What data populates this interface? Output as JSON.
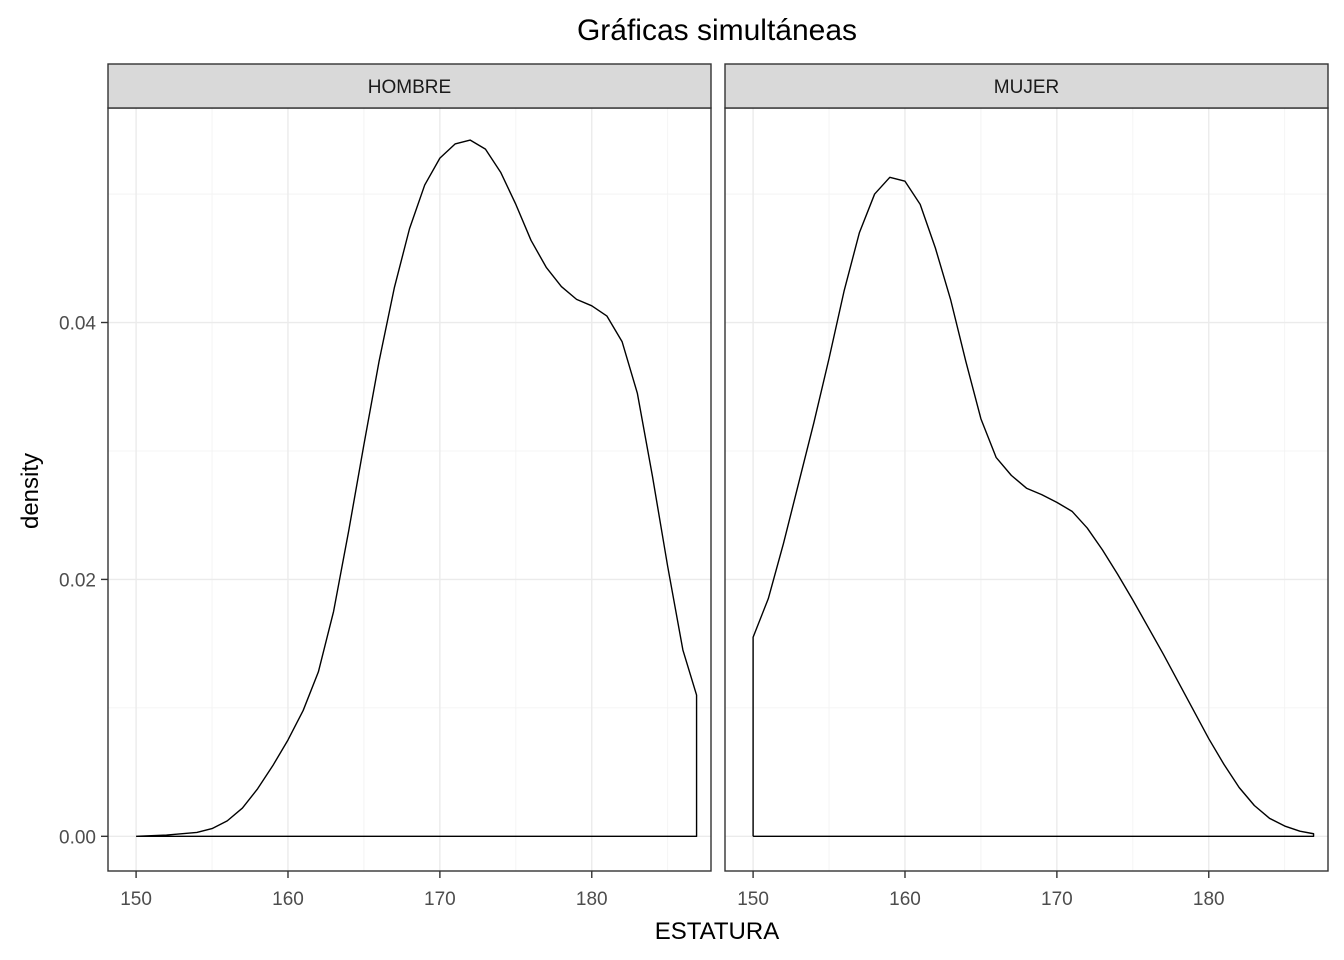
{
  "chart_data": {
    "type": "area",
    "title": "Gráficas simultáneas",
    "xlabel": "ESTATURA",
    "ylabel": "density",
    "xlim": [
      148.15,
      187.85
    ],
    "ylim": [
      -0.0027,
      0.0567
    ],
    "x_ticks": [
      150,
      160,
      170,
      180
    ],
    "y_ticks": [
      0.0,
      0.02,
      0.04
    ],
    "y_tick_labels": [
      "0.00",
      "0.02",
      "0.04"
    ],
    "grid": true,
    "legend": "none",
    "facets": [
      {
        "name": "HOMBRE",
        "x": [
          150,
          152,
          154,
          155,
          156,
          157,
          158,
          159,
          160,
          161,
          162,
          163,
          164,
          165,
          166,
          167,
          168,
          169,
          170,
          171,
          172,
          173,
          174,
          175,
          176,
          177,
          178,
          179,
          180,
          181,
          182,
          183,
          184,
          185,
          186,
          186.9,
          186.9
        ],
        "values": [
          0.0,
          0.0001,
          0.0003,
          0.0006,
          0.0012,
          0.0022,
          0.0037,
          0.0055,
          0.0075,
          0.0098,
          0.0128,
          0.0175,
          0.0238,
          0.0305,
          0.037,
          0.0427,
          0.0473,
          0.0507,
          0.0528,
          0.0539,
          0.0542,
          0.0535,
          0.0517,
          0.0492,
          0.0464,
          0.0443,
          0.0428,
          0.0418,
          0.0413,
          0.0405,
          0.0385,
          0.0345,
          0.028,
          0.021,
          0.0145,
          0.011,
          0.0
        ]
      },
      {
        "name": "MUJER",
        "x": [
          150,
          150,
          151,
          152,
          153,
          154,
          155,
          156,
          157,
          158,
          159,
          160,
          161,
          162,
          163,
          164,
          165,
          166,
          167,
          168,
          169,
          170,
          171,
          172,
          173,
          174,
          175,
          176,
          177,
          178,
          179,
          180,
          181,
          182,
          183,
          184,
          185,
          186,
          186.9,
          186.9
        ],
        "values": [
          0.0,
          0.0155,
          0.0185,
          0.0228,
          0.0275,
          0.0322,
          0.0372,
          0.0425,
          0.047,
          0.05,
          0.0513,
          0.051,
          0.0492,
          0.0458,
          0.0418,
          0.037,
          0.0325,
          0.0295,
          0.0281,
          0.0271,
          0.0266,
          0.026,
          0.0253,
          0.024,
          0.0223,
          0.0204,
          0.0184,
          0.0163,
          0.0142,
          0.012,
          0.0098,
          0.0076,
          0.0056,
          0.0038,
          0.0024,
          0.0014,
          0.0008,
          0.0004,
          0.0002,
          0.0
        ]
      }
    ]
  },
  "colors": {
    "line": "#000000",
    "strip_background": "#d9d9d9",
    "panel_border": "#333333",
    "grid": "#ebebeb"
  }
}
